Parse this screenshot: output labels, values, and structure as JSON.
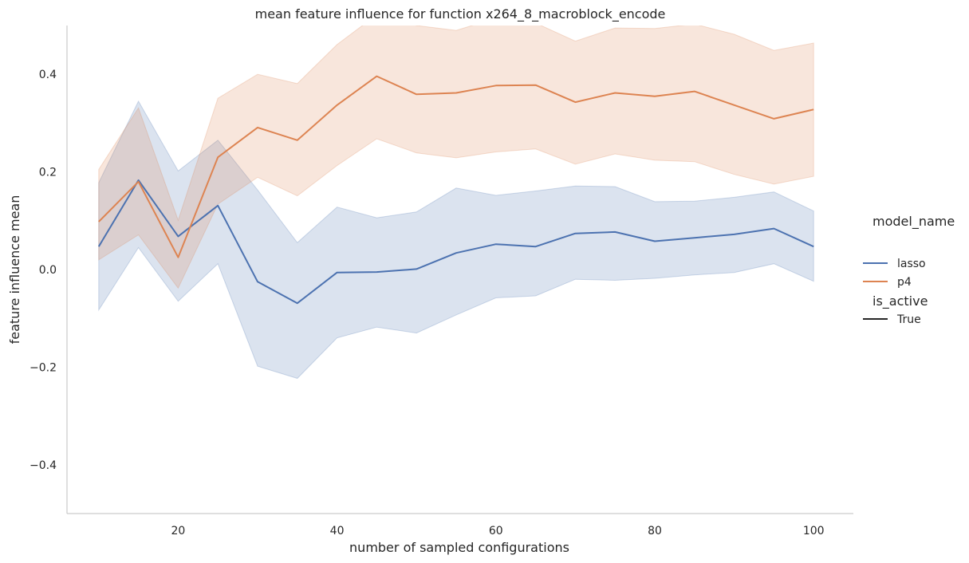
{
  "chart_data": {
    "type": "line",
    "title": "mean feature influence for function x264_8_macroblock_encode",
    "xlabel": "number of sampled configurations",
    "ylabel": "feature influence mean",
    "xlim": [
      6,
      105
    ],
    "ylim": [
      -0.5,
      0.5
    ],
    "xticks": [
      20,
      40,
      60,
      80,
      100
    ],
    "yticks": [
      -0.4,
      -0.2,
      0.0,
      0.2,
      0.4
    ],
    "ytick_labels": [
      "−0.4",
      "−0.2",
      "0.0",
      "0.2",
      "0.4"
    ],
    "grid": false,
    "legend_placement": "right",
    "x": [
      10,
      15,
      20,
      25,
      30,
      35,
      40,
      45,
      50,
      55,
      60,
      65,
      70,
      75,
      80,
      85,
      90,
      95,
      100
    ],
    "series": [
      {
        "name": "lasso",
        "color": "#4c72b0",
        "values": [
          0.047,
          0.183,
          0.068,
          0.131,
          -0.025,
          -0.069,
          -0.006,
          -0.005,
          0.001,
          0.034,
          0.052,
          0.047,
          0.074,
          0.077,
          0.058,
          0.065,
          0.072,
          0.084,
          0.047
        ],
        "lower": [
          -0.083,
          0.045,
          -0.065,
          0.012,
          -0.198,
          -0.223,
          -0.14,
          -0.118,
          -0.13,
          -0.093,
          -0.058,
          -0.054,
          -0.02,
          -0.022,
          -0.018,
          -0.011,
          -0.006,
          0.012,
          -0.024
        ],
        "upper": [
          0.178,
          0.345,
          0.202,
          0.265,
          0.163,
          0.055,
          0.128,
          0.106,
          0.118,
          0.167,
          0.152,
          0.161,
          0.171,
          0.17,
          0.139,
          0.14,
          0.148,
          0.159,
          0.12
        ]
      },
      {
        "name": "p4",
        "color": "#dd8452",
        "values": [
          0.098,
          0.18,
          0.025,
          0.23,
          0.291,
          0.265,
          0.337,
          0.396,
          0.359,
          0.362,
          0.377,
          0.378,
          0.343,
          0.362,
          0.355,
          0.365,
          0.337,
          0.309,
          0.328
        ],
        "lower": [
          0.02,
          0.071,
          -0.038,
          0.134,
          0.189,
          0.151,
          0.213,
          0.268,
          0.239,
          0.229,
          0.241,
          0.247,
          0.216,
          0.237,
          0.224,
          0.221,
          0.195,
          0.175,
          0.191
        ],
        "upper": [
          0.205,
          0.331,
          0.101,
          0.351,
          0.4,
          0.381,
          0.461,
          0.522,
          0.5,
          0.49,
          0.515,
          0.505,
          0.468,
          0.495,
          0.494,
          0.503,
          0.482,
          0.449,
          0.464
        ]
      }
    ],
    "legend": {
      "hue_title": "model_name",
      "style_title": "is_active",
      "style_label": "True",
      "style_color": "#262626"
    }
  }
}
